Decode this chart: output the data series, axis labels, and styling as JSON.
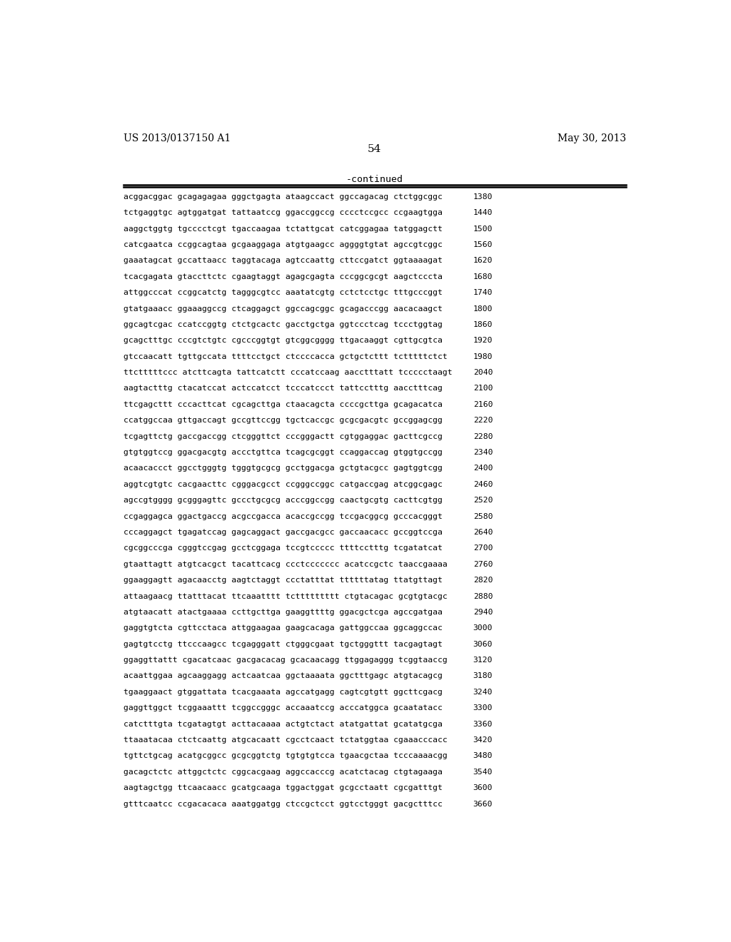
{
  "header_left": "US 2013/0137150 A1",
  "header_right": "May 30, 2013",
  "page_number": "54",
  "continued_label": "-continued",
  "background_color": "#ffffff",
  "text_color": "#000000",
  "sequence_lines": [
    [
      "acggacggac gcagagagaa gggctgagta ataagccact ggccagacag ctctggcggc",
      "1380"
    ],
    [
      "tctgaggtgc agtggatgat tattaatccg ggaccggccg cccctccgcc ccgaagtgga",
      "1440"
    ],
    [
      "aaggctggtg tgcccctcgt tgaccaagaa tctattgcat catcggagaa tatggagctt",
      "1500"
    ],
    [
      "catcgaatca ccggcagtaa gcgaaggaga atgtgaagcc aggggtgtat agccgtcggc",
      "1560"
    ],
    [
      "gaaatagcat gccattaacc taggtacaga agtccaattg cttccgatct ggtaaaagat",
      "1620"
    ],
    [
      "tcacgagata gtaccttctc cgaagtaggt agagcgagta cccggcgcgt aagctcccta",
      "1680"
    ],
    [
      "attggcccat ccggcatctg tagggcgtcc aaatatcgtg cctctcctgc tttgcccggt",
      "1740"
    ],
    [
      "gtatgaaacc ggaaaggccg ctcaggagct ggccagcggc gcagacccgg aacacaagct",
      "1800"
    ],
    [
      "ggcagtcgac ccatccggtg ctctgcactc gacctgctga ggtccctcag tccctggtag",
      "1860"
    ],
    [
      "gcagctttgc cccgtctgtc cgcccggtgt gtcggcgggg ttgacaaggt cgttgcgtca",
      "1920"
    ],
    [
      "gtccaacatt tgttgccata ttttcctgct ctccccacca gctgctcttt tctttttctct",
      "1980"
    ],
    [
      "ttctttttccc atcttcagta tattcatctt cccatccaag aacctttatt tccccctaagt",
      "2040"
    ],
    [
      "aagtactttg ctacatccat actccatcct tcccatccct tattcctttg aacctttcag",
      "2100"
    ],
    [
      "ttcgagcttt cccacttcat cgcagcttga ctaacagcta ccccgcttga gcagacatca",
      "2160"
    ],
    [
      "ccatggccaa gttgaccagt gccgttccgg tgctcaccgc gcgcgacgtc gccggagcgg",
      "2220"
    ],
    [
      "tcgagttctg gaccgaccgg ctcgggttct cccgggactt cgtggaggac gacttcgccg",
      "2280"
    ],
    [
      "gtgtggtccg ggacgacgtg accctgttca tcagcgcggt ccaggaccag gtggtgccgg",
      "2340"
    ],
    [
      "acaacaccct ggcctgggtg tgggtgcgcg gcctggacga gctgtacgcc gagtggtcgg",
      "2400"
    ],
    [
      "aggtcgtgtc cacgaacttc cgggacgcct ccgggccggc catgaccgag atcggcgagc",
      "2460"
    ],
    [
      "agccgtgggg gcgggagttc gccctgcgcg acccggccgg caactgcgtg cacttcgtgg",
      "2520"
    ],
    [
      "ccgaggagca ggactgaccg acgccgacca acaccgccgg tccgacggcg gcccacgggt",
      "2580"
    ],
    [
      "cccaggagct tgagatccag gagcaggact gaccgacgcc gaccaacacc gccggtccga",
      "2640"
    ],
    [
      "cgcggcccga cgggtccgag gcctcggaga tccgtccccc ttttcctttg tcgatatcat",
      "2700"
    ],
    [
      "gtaattagtt atgtcacgct tacattcacg ccctccccccc acatccgctc taaccgaaaa",
      "2760"
    ],
    [
      "ggaaggagtt agacaacctg aagtctaggt ccctatttat ttttttatag ttatgttagt",
      "2820"
    ],
    [
      "attaagaacg ttatttacat ttcaaatttt tcttttttttt ctgtacagac gcgtgtacgc",
      "2880"
    ],
    [
      "atgtaacatt atactgaaaa ccttgcttga gaaggttttg ggacgctcga agccgatgaa",
      "2940"
    ],
    [
      "gaggtgtcta cgttcctaca attggaagaa gaagcacaga gattggccaa ggcaggccac",
      "3000"
    ],
    [
      "gagtgtcctg ttcccaagcc tcgagggatt ctgggcgaat tgctgggttt tacgagtagt",
      "3060"
    ],
    [
      "ggaggttattt cgacatcaac gacgacacag gcacaacagg ttggagaggg tcggtaaccg",
      "3120"
    ],
    [
      "acaattggaa agcaaggagg actcaatcaa ggctaaaata ggctttgagc atgtacagcg",
      "3180"
    ],
    [
      "tgaaggaact gtggattata tcacgaaata agccatgagg cagtcgtgtt ggcttcgacg",
      "3240"
    ],
    [
      "gaggttggct tcggaaattt tcggccgggc accaaatccg acccatggca gcaatatacc",
      "3300"
    ],
    [
      "catctttgta tcgatagtgt acttacaaaa actgtctact atatgattat gcatatgcga",
      "3360"
    ],
    [
      "ttaaatacaa ctctcaattg atgcacaatt cgcctcaact tctatggtaa cgaaacccacc",
      "3420"
    ],
    [
      "tgttctgcag acatgcggcc gcgcggtctg tgtgtgtcca tgaacgctaa tcccaaaacgg",
      "3480"
    ],
    [
      "gacagctctc attggctctc cggcacgaag aggccacccg acatctacag ctgtagaaga",
      "3540"
    ],
    [
      "aagtagctgg ttcaacaacc gcatgcaaga tggactggat gcgcctaatt cgcgatttgt",
      "3600"
    ],
    [
      "gtttcaatcc ccgacacaca aaatggatgg ctccgctcct ggtcctgggt gacgctttcc",
      "3660"
    ]
  ]
}
